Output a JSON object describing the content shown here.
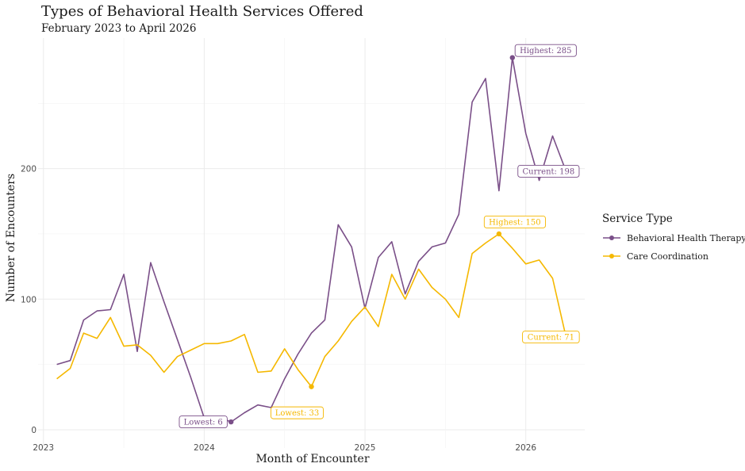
{
  "chart_data": {
    "type": "line",
    "title": "Types of Behavioral Health Services Offered",
    "subtitle": "February 2023 to April 2026",
    "xlabel": "Month of Encounter",
    "ylabel": "Number of Encounters",
    "x_ticks": [
      "2023",
      "2024",
      "2025",
      "2026"
    ],
    "y_ticks": [
      0,
      100,
      200
    ],
    "ylim": [
      -14,
      300
    ],
    "grid": true,
    "legend": {
      "title": "Service Type",
      "placement": "right"
    },
    "months": [
      "2023-02",
      "2023-03",
      "2023-04",
      "2023-05",
      "2023-06",
      "2023-07",
      "2023-08",
      "2023-09",
      "2023-10",
      "2023-11",
      "2023-12",
      "2024-01",
      "2024-02",
      "2024-03",
      "2024-04",
      "2024-05",
      "2024-06",
      "2024-07",
      "2024-08",
      "2024-09",
      "2024-10",
      "2024-11",
      "2024-12",
      "2025-01",
      "2025-02",
      "2025-03",
      "2025-04",
      "2025-05",
      "2025-06",
      "2025-07",
      "2025-08",
      "2025-09",
      "2025-10",
      "2025-11",
      "2025-12",
      "2026-01",
      "2026-02",
      "2026-03",
      "2026-04"
    ],
    "series": [
      {
        "name": "Behavioral Health Therapy",
        "color": "#7a4f88",
        "values": [
          50,
          53,
          84,
          91,
          92,
          119,
          60,
          128,
          98,
          69,
          40,
          9,
          10,
          6,
          13,
          19,
          17,
          39,
          58,
          74,
          84,
          157,
          140,
          93,
          132,
          144,
          104,
          129,
          140,
          143,
          165,
          251,
          269,
          183,
          285,
          227,
          191,
          225,
          198
        ],
        "annotations": [
          {
            "label": "Lowest: 6",
            "month": "2024-03",
            "value": 6
          },
          {
            "label": "Highest: 285",
            "month": "2025-12",
            "value": 285
          },
          {
            "label": "Current: 198",
            "month": "2026-04",
            "value": 198
          }
        ]
      },
      {
        "name": "Care Coordination",
        "color": "#f5b800",
        "values": [
          39,
          47,
          74,
          70,
          86,
          64,
          65,
          57,
          44,
          56,
          61,
          66,
          66,
          68,
          73,
          44,
          45,
          62,
          46,
          33,
          56,
          68,
          83,
          94,
          79,
          119,
          100,
          123,
          109,
          100,
          86,
          135,
          143,
          150,
          139,
          127,
          130,
          116,
          71
        ],
        "annotations": [
          {
            "label": "Lowest: 33",
            "month": "2024-09",
            "value": 33
          },
          {
            "label": "Highest: 150",
            "month": "2025-11",
            "value": 150
          },
          {
            "label": "Current: 71",
            "month": "2026-04",
            "value": 71
          }
        ]
      }
    ]
  }
}
